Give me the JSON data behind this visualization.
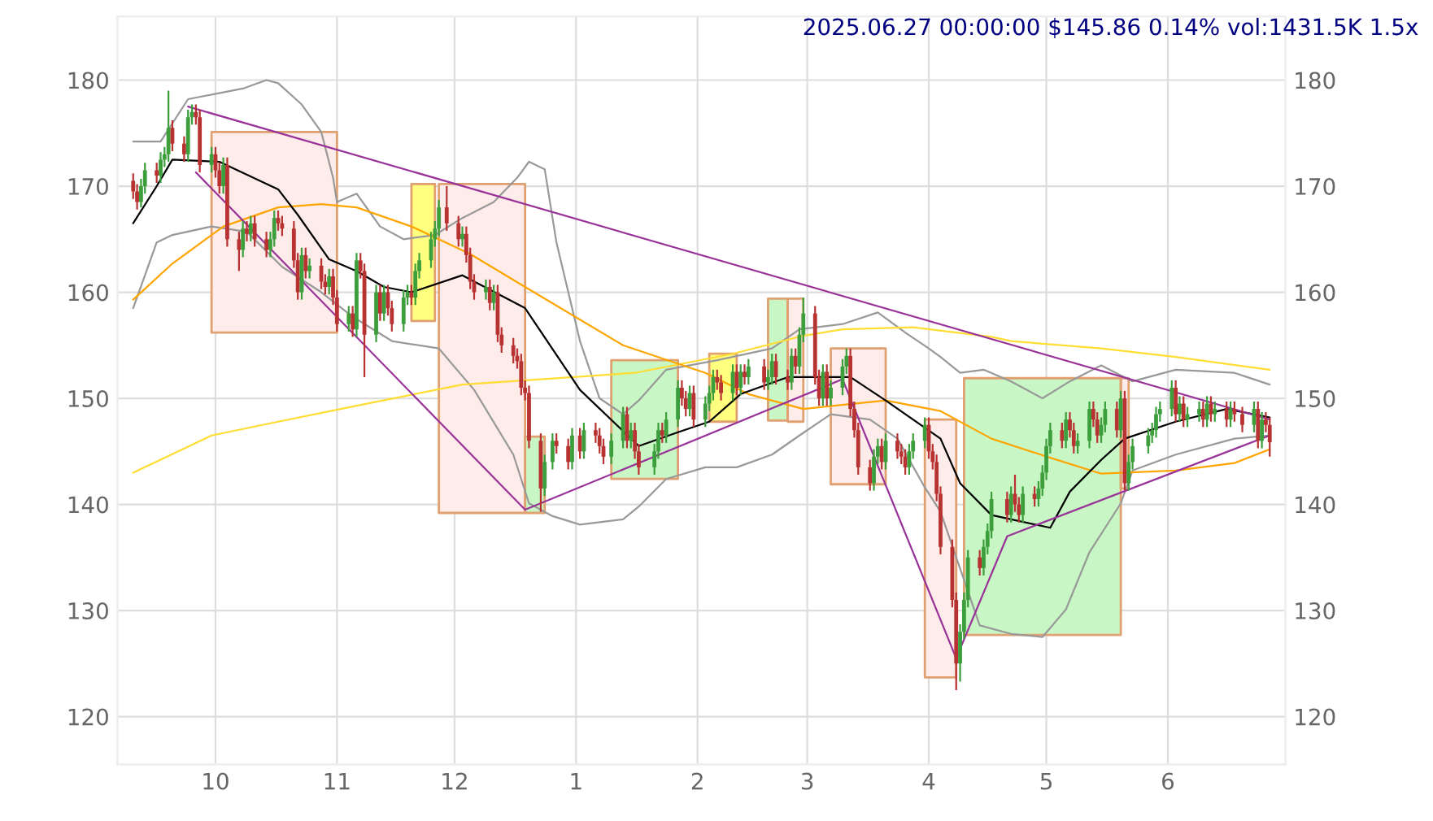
{
  "chart_data": {
    "type": "candlestick",
    "title": "2025.06.27 00:00:00 $145.86 0.14% vol:1431.5K 1.5x",
    "x": [
      "2024-09-10",
      "2024-09-11",
      "2024-09-12",
      "2024-09-13",
      "2024-09-16",
      "2024-09-17",
      "2024-09-18",
      "2024-09-19",
      "2024-09-20",
      "2024-09-23",
      "2024-09-24",
      "2024-09-25",
      "2024-09-26",
      "2024-09-27",
      "2024-09-30",
      "2024-10-01",
      "2024-10-02",
      "2024-10-03",
      "2024-10-04",
      "2024-10-07",
      "2024-10-08",
      "2024-10-09",
      "2024-10-10",
      "2024-10-11",
      "2024-10-14",
      "2024-10-15",
      "2024-10-16",
      "2024-10-17",
      "2024-10-18",
      "2024-10-21",
      "2024-10-22",
      "2024-10-23",
      "2024-10-24",
      "2024-10-25",
      "2024-10-28",
      "2024-10-29",
      "2024-10-30",
      "2024-10-31",
      "2024-11-01",
      "2024-11-04",
      "2024-11-05",
      "2024-11-06",
      "2024-11-07",
      "2024-11-08",
      "2024-11-11",
      "2024-11-12",
      "2024-11-13",
      "2024-11-14",
      "2024-11-15",
      "2024-11-18",
      "2024-11-19",
      "2024-11-20",
      "2024-11-21",
      "2024-11-22",
      "2024-11-25",
      "2024-11-26",
      "2024-11-27",
      "2024-11-29",
      "2024-12-02",
      "2024-12-03",
      "2024-12-04",
      "2024-12-05",
      "2024-12-06",
      "2024-12-09",
      "2024-12-10",
      "2024-12-11",
      "2024-12-12",
      "2024-12-13",
      "2024-12-16",
      "2024-12-17",
      "2024-12-18",
      "2024-12-19",
      "2024-12-20",
      "2024-12-23",
      "2024-12-24",
      "2024-12-26",
      "2024-12-27",
      "2024-12-30",
      "2024-12-31",
      "2025-01-02",
      "2025-01-03",
      "2025-01-06",
      "2025-01-07",
      "2025-01-08",
      "2025-01-10",
      "2025-01-13",
      "2025-01-14",
      "2025-01-15",
      "2025-01-16",
      "2025-01-17",
      "2025-01-21",
      "2025-01-22",
      "2025-01-23",
      "2025-01-24",
      "2025-01-27",
      "2025-01-28",
      "2025-01-29",
      "2025-01-30",
      "2025-01-31",
      "2025-02-03",
      "2025-02-04",
      "2025-02-05",
      "2025-02-06",
      "2025-02-07",
      "2025-02-10",
      "2025-02-11",
      "2025-02-12",
      "2025-02-13",
      "2025-02-14",
      "2025-02-18",
      "2025-02-19",
      "2025-02-20",
      "2025-02-21",
      "2025-02-24",
      "2025-02-25",
      "2025-02-26",
      "2025-02-27",
      "2025-02-28",
      "2025-03-03",
      "2025-03-04",
      "2025-03-05",
      "2025-03-06",
      "2025-03-07",
      "2025-03-10",
      "2025-03-11",
      "2025-03-12",
      "2025-03-13",
      "2025-03-14",
      "2025-03-17",
      "2025-03-18",
      "2025-03-19",
      "2025-03-20",
      "2025-03-21",
      "2025-03-24",
      "2025-03-25",
      "2025-03-26",
      "2025-03-27",
      "2025-03-28",
      "2025-03-31",
      "2025-04-01",
      "2025-04-02",
      "2025-04-03",
      "2025-04-04",
      "2025-04-07",
      "2025-04-08",
      "2025-04-09",
      "2025-04-10",
      "2025-04-11",
      "2025-04-14",
      "2025-04-15",
      "2025-04-16",
      "2025-04-17",
      "2025-04-21",
      "2025-04-22",
      "2025-04-23",
      "2025-04-24",
      "2025-04-25",
      "2025-04-28",
      "2025-04-29",
      "2025-04-30",
      "2025-05-01",
      "2025-05-02",
      "2025-05-05",
      "2025-05-06",
      "2025-05-07",
      "2025-05-08",
      "2025-05-09",
      "2025-05-12",
      "2025-05-13",
      "2025-05-14",
      "2025-05-15",
      "2025-05-16",
      "2025-05-19",
      "2025-05-20",
      "2025-05-21",
      "2025-05-22",
      "2025-05-23",
      "2025-05-27",
      "2025-05-28",
      "2025-05-29",
      "2025-05-30",
      "2025-06-02",
      "2025-06-03",
      "2025-06-04",
      "2025-06-05",
      "2025-06-06",
      "2025-06-09",
      "2025-06-10",
      "2025-06-11",
      "2025-06-12",
      "2025-06-13",
      "2025-06-16",
      "2025-06-17",
      "2025-06-18",
      "2025-06-20",
      "2025-06-23",
      "2025-06-24",
      "2025-06-25",
      "2025-06-26",
      "2025-06-27"
    ],
    "colors": [
      "#b83232",
      "#b83232",
      "#3c9f3c",
      "#3c9f3c",
      "#b83232",
      "#3c9f3c",
      "#3c9f3c",
      "#3c9f3c",
      "#b83232",
      "#b83232",
      "#3c9f3c",
      "#3c9f3c",
      "#b83232",
      "#b83232",
      "#3c9f3c",
      "#b83232",
      "#b83232",
      "#3c9f3c",
      "#b83232",
      "#b83232",
      "#3c9f3c",
      "#b83232",
      "#3c9f3c",
      "#b83232",
      "#b83232",
      "#3c9f3c",
      "#3c9f3c",
      "#b83232",
      "#b83232",
      "#b83232",
      "#b83232",
      "#3c9f3c",
      "#b83232",
      "#3c9f3c",
      "#b83232",
      "#b83232",
      "#3c9f3c",
      "#b83232",
      "#b83232",
      "#3c9f3c",
      "#b83232",
      "#3c9f3c",
      "#b83232",
      "#b83232",
      "#3c9f3c",
      "#b83232",
      "#3c9f3c",
      "#b83232",
      "#b83232",
      "#3c9f3c",
      "#3c9f3c",
      "#b83232",
      "#3c9f3c",
      "#3c9f3c",
      "#3c9f3c",
      "#3c9f3c",
      "#3c9f3c",
      "#b83232",
      "#b83232",
      "#3c9f3c",
      "#b83232",
      "#b83232",
      "#b83232",
      "#3c9f3c",
      "#b83232",
      "#3c9f3c",
      "#b83232",
      "#b83232",
      "#b83232",
      "#b83232",
      "#b83232",
      "#b83232",
      "#b83232",
      "#b83232",
      "#3c9f3c",
      "#3c9f3c",
      "#b83232",
      "#b83232",
      "#3c9f3c",
      "#b83232",
      "#3c9f3c",
      "#b83232",
      "#b83232",
      "#b83232",
      "#3c9f3c",
      "#3c9f3c",
      "#b83232",
      "#3c9f3c",
      "#b83232",
      "#b83232",
      "#3c9f3c",
      "#3c9f3c",
      "#b83232",
      "#3c9f3c",
      "#3c9f3c",
      "#b83232",
      "#b83232",
      "#3c9f3c",
      "#b83232",
      "#3c9f3c",
      "#3c9f3c",
      "#3c9f3c",
      "#b83232",
      "#b83232",
      "#3c9f3c",
      "#b83232",
      "#3c9f3c",
      "#b83232",
      "#3c9f3c",
      "#b83232",
      "#3c9f3c",
      "#3c9f3c",
      "#b83232",
      "#b83232",
      "#3c9f3c",
      "#b83232",
      "#3c9f3c",
      "#3c9f3c",
      "#b83232",
      "#b83232",
      "#3c9f3c",
      "#b83232",
      "#3c9f3c",
      "#3c9f3c",
      "#3c9f3c",
      "#b83232",
      "#b83232",
      "#b83232",
      "#b83232",
      "#3c9f3c",
      "#3c9f3c",
      "#b83232",
      "#3c9f3c",
      "#b83232",
      "#b83232",
      "#b83232",
      "#3c9f3c",
      "#3c9f3c",
      "#3c9f3c",
      "#b83232",
      "#b83232",
      "#b83232",
      "#b83232",
      "#b83232",
      "#b83232",
      "#3c9f3c",
      "#3c9f3c",
      "#3c9f3c",
      "#b83232",
      "#3c9f3c",
      "#3c9f3c",
      "#3c9f3c",
      "#b83232",
      "#3c9f3c",
      "#b83232",
      "#b83232",
      "#3c9f3c",
      "#b83232",
      "#3c9f3c",
      "#3c9f3c",
      "#3c9f3c",
      "#3c9f3c",
      "#b83232",
      "#3c9f3c",
      "#b83232",
      "#b83232",
      "#3c9f3c",
      "#3c9f3c",
      "#b83232",
      "#b83232",
      "#3c9f3c",
      "#3c9f3c",
      "#b83232",
      "#3c9f3c",
      "#b83232",
      "#3c9f3c",
      "#3c9f3c",
      "#3c9f3c",
      "#3c9f3c",
      "#3c9f3c",
      "#3c9f3c",
      "#3c9f3c",
      "#b83232",
      "#3c9f3c",
      "#b83232",
      "#3c9f3c",
      "#3c9f3c",
      "#b83232",
      "#3c9f3c",
      "#b83232",
      "#3c9f3c",
      "#b83232",
      "#3c9f3c",
      "#b83232",
      "#b83232",
      "#3c9f3c",
      "#b83232",
      "#3c9f3c",
      "#b83232",
      "#b83232"
    ],
    "ohlc": [
      [
        170.5,
        171.2,
        168.8,
        169.5
      ],
      [
        169.5,
        170.2,
        167.8,
        168.5
      ],
      [
        168.5,
        170.7,
        168,
        170
      ],
      [
        170,
        172.2,
        169.3,
        171.5
      ],
      [
        171.5,
        172.2,
        170.3,
        171
      ],
      [
        171,
        173.2,
        170.3,
        172.5
      ],
      [
        172.5,
        173.7,
        171.8,
        173
      ],
      [
        173,
        179,
        172.3,
        175.5
      ],
      [
        175.5,
        176.2,
        173.3,
        174
      ],
      [
        174,
        174.7,
        172.3,
        173
      ],
      [
        173,
        177.2,
        172.3,
        176.5
      ],
      [
        176.5,
        177.7,
        175.8,
        177
      ],
      [
        177,
        177.7,
        175.8,
        176.5
      ],
      [
        176.5,
        177.2,
        171.3,
        172
      ],
      [
        172,
        173.7,
        171.3,
        173
      ],
      [
        173,
        173.7,
        170.8,
        171.5
      ],
      [
        171.5,
        172.2,
        169.3,
        170
      ],
      [
        170,
        172.7,
        169.3,
        172
      ],
      [
        172,
        172.7,
        164.3,
        165
      ],
      [
        165,
        165.7,
        162,
        164
      ],
      [
        164,
        166.7,
        163.3,
        166
      ],
      [
        166,
        166.7,
        164.8,
        165.5
      ],
      [
        165.5,
        167.2,
        164.8,
        166.5
      ],
      [
        166.5,
        167.2,
        164.3,
        165
      ],
      [
        165,
        165.7,
        163.3,
        164
      ],
      [
        164,
        165.7,
        163.3,
        165
      ],
      [
        165,
        167.7,
        164.3,
        167
      ],
      [
        167,
        167.7,
        165.8,
        166.5
      ],
      [
        166.5,
        167.2,
        165.3,
        166
      ],
      [
        166,
        166.7,
        162.3,
        163
      ],
      [
        163,
        163.7,
        159.3,
        160
      ],
      [
        160,
        164.2,
        159.3,
        163.5
      ],
      [
        163.5,
        164.2,
        161.3,
        162
      ],
      [
        162,
        163.2,
        161.3,
        162.5
      ],
      [
        162.5,
        163.2,
        160.3,
        161
      ],
      [
        161,
        161.7,
        159.8,
        160.5
      ],
      [
        160.5,
        162.2,
        159.8,
        161.5
      ],
      [
        161.5,
        162.2,
        158.8,
        159.5
      ],
      [
        159.5,
        160.2,
        156.3,
        157
      ],
      [
        157,
        158.7,
        156.3,
        158
      ],
      [
        158,
        158.7,
        155.8,
        156.5
      ],
      [
        156.5,
        163.7,
        155.8,
        163
      ],
      [
        163,
        163.7,
        161.3,
        162
      ],
      [
        162,
        162.7,
        152,
        156
      ],
      [
        156,
        160.7,
        155.3,
        160
      ],
      [
        160,
        160.7,
        157.3,
        158
      ],
      [
        158,
        160.7,
        157.3,
        160
      ],
      [
        160,
        160.7,
        157.8,
        158.5
      ],
      [
        158.5,
        159.2,
        156.3,
        157
      ],
      [
        157,
        160.2,
        156.3,
        159.5
      ],
      [
        159.5,
        160.7,
        158.8,
        160
      ],
      [
        160,
        160.7,
        158.8,
        159.5
      ],
      [
        159.5,
        162.7,
        158.8,
        162
      ],
      [
        162,
        163.7,
        161.3,
        163
      ],
      [
        163,
        165.7,
        162.3,
        165
      ],
      [
        165,
        166.7,
        164.3,
        166
      ],
      [
        166,
        168.7,
        165.3,
        168
      ],
      [
        168,
        170,
        165.8,
        166.5
      ],
      [
        166.5,
        167.2,
        164.3,
        165
      ],
      [
        165,
        166.2,
        164.3,
        165.5
      ],
      [
        165.5,
        166.2,
        162.8,
        163.5
      ],
      [
        163.5,
        164.2,
        160.3,
        161
      ],
      [
        161,
        161.7,
        159.3,
        160
      ],
      [
        160,
        161.2,
        159.3,
        160.5
      ],
      [
        160.5,
        161.2,
        158.3,
        159
      ],
      [
        159,
        160.7,
        158.3,
        160
      ],
      [
        160,
        160.7,
        155.3,
        156
      ],
      [
        156,
        156.7,
        154.3,
        155
      ],
      [
        155,
        155.7,
        153.3,
        154
      ],
      [
        154,
        154.7,
        152.8,
        153.5
      ],
      [
        153.5,
        154.2,
        150.3,
        151
      ],
      [
        151,
        151.7,
        149.8,
        150.5
      ],
      [
        150.5,
        151.2,
        145.3,
        146
      ],
      [
        146,
        146.7,
        139.3,
        141.5
      ],
      [
        141.5,
        144.7,
        140.8,
        144
      ],
      [
        144,
        146.7,
        143.3,
        146
      ],
      [
        146,
        146.7,
        144.8,
        145.5
      ],
      [
        145.5,
        146.2,
        143.3,
        144
      ],
      [
        144,
        147.2,
        143.3,
        146.5
      ],
      [
        146.5,
        147.2,
        144.3,
        145
      ],
      [
        145,
        147.7,
        144.3,
        147
      ],
      [
        147,
        147.7,
        145.8,
        146.5
      ],
      [
        146.5,
        147.2,
        144.8,
        145.5
      ],
      [
        145.5,
        146.2,
        143.8,
        144.5
      ],
      [
        144.5,
        146.7,
        143.8,
        146
      ],
      [
        146,
        149.2,
        145.3,
        148.5
      ],
      [
        148.5,
        149.2,
        145.3,
        146
      ],
      [
        146,
        147.7,
        145.3,
        147
      ],
      [
        147,
        147.7,
        144.3,
        145
      ],
      [
        145,
        145.7,
        142.8,
        143.5
      ],
      [
        143.5,
        145.7,
        142.8,
        145
      ],
      [
        145,
        147.7,
        144.3,
        147
      ],
      [
        147,
        147.7,
        145.8,
        146.5
      ],
      [
        146.5,
        148.7,
        145.8,
        148
      ],
      [
        148,
        151.7,
        147.3,
        151
      ],
      [
        151,
        151.7,
        149.3,
        150
      ],
      [
        150,
        150.7,
        148.3,
        149
      ],
      [
        149,
        151.2,
        148.3,
        150.5
      ],
      [
        150.5,
        151.2,
        147.3,
        148
      ],
      [
        148,
        150.2,
        147.3,
        149.5
      ],
      [
        149.5,
        151.2,
        148.8,
        150.5
      ],
      [
        150.5,
        152.7,
        149.8,
        152
      ],
      [
        152,
        152.7,
        150.8,
        151.5
      ],
      [
        151.5,
        152.2,
        149.8,
        150.5
      ],
      [
        150.5,
        153.2,
        149.8,
        152.5
      ],
      [
        152.5,
        153.2,
        150.3,
        151
      ],
      [
        151,
        153.2,
        150.3,
        152.5
      ],
      [
        152.5,
        153.2,
        151.3,
        152
      ],
      [
        152,
        153.7,
        151.3,
        153
      ],
      [
        153,
        153.7,
        150.8,
        151.5
      ],
      [
        151.5,
        152.7,
        150.8,
        152
      ],
      [
        152,
        154.2,
        151.3,
        153.5
      ],
      [
        153.5,
        154.2,
        151.3,
        152
      ],
      [
        152,
        152.7,
        150.8,
        151.5
      ],
      [
        151.5,
        154.7,
        150.8,
        154
      ],
      [
        154,
        154.7,
        152.3,
        153
      ],
      [
        153,
        156.7,
        152.3,
        156
      ],
      [
        156,
        159.5,
        155.3,
        158
      ],
      [
        158,
        158.7,
        151.3,
        152
      ],
      [
        152,
        152.7,
        149.3,
        150
      ],
      [
        150,
        153.2,
        149.3,
        152.5
      ],
      [
        152.5,
        153.2,
        149.3,
        150
      ],
      [
        150,
        151.7,
        149.3,
        151
      ],
      [
        151,
        153.7,
        150.3,
        153
      ],
      [
        153,
        154.7,
        152.3,
        154
      ],
      [
        154,
        154.7,
        148.3,
        149
      ],
      [
        149,
        149.7,
        146.3,
        147
      ],
      [
        147,
        147.7,
        142.8,
        143.5
      ],
      [
        143.5,
        144.2,
        141.3,
        142
      ],
      [
        142,
        145.2,
        141.3,
        144.5
      ],
      [
        144.5,
        146.2,
        143.8,
        145.5
      ],
      [
        145.5,
        146.2,
        143.3,
        144
      ],
      [
        144,
        146.7,
        143.3,
        146
      ],
      [
        146,
        146.7,
        144.3,
        145
      ],
      [
        145,
        145.7,
        143.8,
        144.5
      ],
      [
        144.5,
        145.2,
        142.8,
        143.5
      ],
      [
        143.5,
        145.7,
        142.8,
        145
      ],
      [
        145,
        146.7,
        144.3,
        146
      ],
      [
        146,
        148.2,
        145.3,
        147.5
      ],
      [
        147.5,
        148.2,
        144.3,
        145
      ],
      [
        145,
        145.7,
        143.3,
        144
      ],
      [
        144,
        144.7,
        140.3,
        141
      ],
      [
        141,
        141.7,
        135.3,
        136
      ],
      [
        136,
        136.7,
        130.3,
        131
      ],
      [
        131,
        131.7,
        122.5,
        125
      ],
      [
        125,
        128.7,
        123.3,
        128
      ],
      [
        128,
        131.7,
        127.3,
        131
      ],
      [
        131,
        135.7,
        130.3,
        135
      ],
      [
        135,
        135.7,
        133.3,
        134
      ],
      [
        134,
        136.7,
        133.3,
        136
      ],
      [
        136,
        138.2,
        135.3,
        137.5
      ],
      [
        137.5,
        141.2,
        136.8,
        140.5
      ],
      [
        140.5,
        141.2,
        138.3,
        139
      ],
      [
        139,
        141.7,
        138.3,
        141
      ],
      [
        141,
        142.8,
        139.3,
        140
      ],
      [
        140,
        140.7,
        138.3,
        139
      ],
      [
        139,
        141.7,
        138.3,
        141
      ],
      [
        141,
        141.7,
        139.8,
        140.5
      ],
      [
        140.5,
        142.2,
        139.8,
        141.5
      ],
      [
        141.5,
        143.7,
        140.8,
        143
      ],
      [
        143,
        146.2,
        142.3,
        145.5
      ],
      [
        145.5,
        147.7,
        144.8,
        147
      ],
      [
        147,
        147.7,
        145.3,
        146
      ],
      [
        146,
        148.7,
        145.3,
        148
      ],
      [
        148,
        148.7,
        146.3,
        147
      ],
      [
        147,
        147.7,
        144.8,
        145.5
      ],
      [
        145.5,
        146.7,
        144.8,
        146
      ],
      [
        146,
        149.7,
        145.3,
        149
      ],
      [
        149,
        149.7,
        147.3,
        148
      ],
      [
        148,
        148.7,
        145.8,
        146.5
      ],
      [
        146.5,
        148.2,
        145.8,
        147.5
      ],
      [
        147.5,
        149.7,
        146.8,
        149
      ],
      [
        149,
        149.7,
        146.3,
        147
      ],
      [
        147,
        150.7,
        146.3,
        150
      ],
      [
        150,
        150.7,
        141.3,
        142
      ],
      [
        142,
        144.7,
        141.3,
        144
      ],
      [
        144,
        146.2,
        143.3,
        145.5
      ],
      [
        145.5,
        147.2,
        144.8,
        146.5
      ],
      [
        146.5,
        147.7,
        145.8,
        147
      ],
      [
        147,
        149.2,
        146.3,
        148.5
      ],
      [
        148.5,
        149.7,
        147.8,
        149
      ],
      [
        149,
        151.7,
        148.3,
        151
      ],
      [
        151,
        151.7,
        147.8,
        148.5
      ],
      [
        148.5,
        150.2,
        147.8,
        149.5
      ],
      [
        149.5,
        150.2,
        147.3,
        148
      ],
      [
        148,
        149.2,
        147.3,
        148.5
      ],
      [
        148.5,
        149.7,
        147.8,
        149
      ],
      [
        149,
        149.7,
        147.3,
        148
      ],
      [
        148,
        150.2,
        147.3,
        149.5
      ],
      [
        149.5,
        150.2,
        147.8,
        148.5
      ],
      [
        148.5,
        149.7,
        147.8,
        149
      ],
      [
        149,
        149.7,
        147.3,
        148
      ],
      [
        148,
        149.7,
        147.3,
        149
      ],
      [
        149,
        149.7,
        147.8,
        148.5
      ],
      [
        148.5,
        149.2,
        146.8,
        147.5
      ],
      [
        147.5,
        149.7,
        146.8,
        149
      ],
      [
        149,
        149.7,
        145.3,
        146
      ],
      [
        146,
        148.7,
        145.3,
        148
      ],
      [
        148,
        148.7,
        146.8,
        147.5
      ],
      [
        147.5,
        148.2,
        144.5,
        145.86
      ]
    ],
    "series": [
      {
        "type": "line",
        "x": [
          "2024-09-30",
          "2024-11-01"
        ],
        "values": [
          null,
          null
        ],
        "upper": [
          175.1,
          175.1
        ],
        "lower": [
          156.2,
          156.2
        ],
        "color": "#fdecea"
      },
      {
        "type": "line",
        "x": [
          "2024-11-20",
          "2024-11-26"
        ],
        "values": [
          null,
          null
        ],
        "upper": [
          170.2,
          170.2
        ],
        "lower": [
          157.3,
          157.3
        ],
        "color": "#ffff80"
      },
      {
        "type": "line",
        "x": [
          "2024-11-27",
          "2024-12-19"
        ],
        "values": [
          null,
          null
        ],
        "upper": [
          170.2,
          170.2
        ],
        "lower": [
          139.2,
          139.2
        ],
        "color": "#fdecea"
      },
      {
        "type": "line",
        "x": [
          "2024-12-19",
          "2024-12-24"
        ],
        "values": [
          null,
          null
        ],
        "upper": [
          146.4,
          146.4
        ],
        "lower": [
          139.2,
          139.2
        ],
        "color": "#c8f7c5"
      },
      {
        "type": "line",
        "x": [
          "2025-01-10",
          "2025-01-27"
        ],
        "values": [
          null,
          null
        ],
        "upper": [
          153.6,
          153.6
        ],
        "lower": [
          142.4,
          142.4
        ],
        "color": "#c8f7c5"
      },
      {
        "type": "line",
        "x": [
          "2025-02-04",
          "2025-02-11"
        ],
        "values": [
          null,
          null
        ],
        "upper": [
          154.2,
          154.2
        ],
        "lower": [
          147.8,
          147.8
        ],
        "color": "#ffff80"
      },
      {
        "type": "line",
        "x": [
          "2025-02-19",
          "2025-02-24"
        ],
        "values": [
          null,
          null
        ],
        "upper": [
          159.4,
          159.4
        ],
        "lower": [
          147.9,
          147.9
        ],
        "color": "#c8f7c5"
      },
      {
        "type": "line",
        "x": [
          "2025-02-24",
          "2025-02-28"
        ],
        "values": [
          null,
          null
        ],
        "upper": [
          159.4,
          159.4
        ],
        "lower": [
          147.8,
          147.8
        ],
        "color": "#fdecea"
      },
      {
        "type": "line",
        "x": [
          "2025-03-07",
          "2025-03-21"
        ],
        "values": [
          null,
          null
        ],
        "upper": [
          154.7,
          154.7
        ],
        "lower": [
          141.9,
          141.9
        ],
        "color": "#fdecea"
      },
      {
        "type": "line",
        "x": [
          "2025-03-31",
          "2025-04-08"
        ],
        "values": [
          null,
          null
        ],
        "upper": [
          148.0,
          148.0
        ],
        "lower": [
          123.7,
          123.7
        ],
        "color": "#fdecea"
      },
      {
        "type": "line",
        "x": [
          "2025-04-10",
          "2025-05-20"
        ],
        "values": [
          null,
          null
        ],
        "upper": [
          151.9,
          151.9
        ],
        "lower": [
          127.7,
          127.7
        ],
        "color": "#c8f7c5"
      },
      {
        "type": "line",
        "x": [
          "2025-05-20",
          "2025-05-22"
        ],
        "values": [
          null,
          null
        ],
        "upper": [
          151.9,
          151.9
        ],
        "lower": [
          141.5,
          141.5
        ],
        "color": "#fdecea"
      },
      {
        "type": "line",
        "color": "#999999",
        "x": [
          "2024-09-10",
          "2024-09-17",
          "2024-09-24",
          "2024-10-08",
          "2024-10-14",
          "2024-10-17",
          "2024-10-23",
          "2024-10-28",
          "2024-10-31",
          "2024-11-01",
          "2024-11-06",
          "2024-11-12",
          "2024-11-18",
          "2024-11-26",
          "2024-12-03",
          "2024-12-11",
          "2024-12-17",
          "2024-12-20",
          "2024-12-24",
          "2024-12-27",
          "2025-01-02",
          "2025-01-07",
          "2025-01-13",
          "2025-01-17",
          "2025-01-24",
          "2025-02-06",
          "2025-02-20",
          "2025-02-27",
          "2025-03-10",
          "2025-03-19",
          "2025-03-26",
          "2025-04-01",
          "2025-04-04",
          "2025-04-09",
          "2025-04-15",
          "2025-04-22",
          "2025-04-30",
          "2025-05-07",
          "2025-05-15",
          "2025-05-23",
          "2025-06-03",
          "2025-06-18",
          "2025-06-27"
        ],
        "values": [
          174.2,
          174.2,
          178.2,
          179.2,
          180,
          179.7,
          177.7,
          175.1,
          170.8,
          168.5,
          169.3,
          166.2,
          165,
          165.4,
          167,
          168.5,
          170.8,
          172.3,
          171.6,
          164.7,
          155.4,
          150,
          148.5,
          149.8,
          152.7,
          153.6,
          154.7,
          156.5,
          157,
          158.1,
          156.2,
          154.7,
          153.9,
          152.4,
          152.7,
          151.6,
          150,
          151.6,
          153.1,
          151.6,
          152.7,
          152.4,
          151.3
        ]
      },
      {
        "type": "line",
        "color": "#999999",
        "x": [
          "2024-09-10",
          "2024-09-16",
          "2024-09-20",
          "2024-09-30",
          "2024-10-09",
          "2024-10-18",
          "2024-10-28",
          "2024-11-05",
          "2024-11-15",
          "2024-11-27",
          "2024-12-06",
          "2024-12-16",
          "2024-12-20",
          "2024-12-26",
          "2025-01-02",
          "2025-01-13",
          "2025-01-17",
          "2025-01-24",
          "2025-02-03",
          "2025-02-11",
          "2025-02-20",
          "2025-02-27",
          "2025-03-07",
          "2025-03-17",
          "2025-03-24",
          "2025-03-31",
          "2025-04-04",
          "2025-04-14",
          "2025-04-22",
          "2025-04-30",
          "2025-05-06",
          "2025-05-12",
          "2025-05-20",
          "2025-05-23",
          "2025-06-03",
          "2025-06-18",
          "2025-06-27"
        ],
        "values": [
          158.5,
          164.7,
          165.4,
          166.2,
          165.7,
          162.4,
          160,
          157.7,
          155.4,
          154.7,
          150.8,
          144.7,
          140.1,
          138.9,
          138.1,
          138.6,
          139.8,
          142.4,
          143.5,
          143.5,
          144.7,
          146.5,
          148.5,
          148,
          146.2,
          141.6,
          139.3,
          128.6,
          127.8,
          127.5,
          130.1,
          135.5,
          140.1,
          143.2,
          144.7,
          146.2,
          146.5
        ]
      },
      {
        "type": "line",
        "color": "#ffdd33",
        "x": [
          "2024-09-10",
          "2024-09-30",
          "2024-10-17",
          "2024-11-06",
          "2024-12-03",
          "2025-01-16",
          "2025-02-10",
          "2025-02-28",
          "2025-03-10",
          "2025-03-28",
          "2025-04-17",
          "2025-04-22",
          "2025-05-15",
          "2025-06-03",
          "2025-06-27"
        ],
        "values": [
          143,
          146.5,
          147.8,
          149.3,
          151.3,
          152.4,
          154.2,
          155.9,
          156.5,
          156.7,
          155.8,
          155.4,
          154.7,
          153.9,
          152.7
        ]
      },
      {
        "type": "line",
        "color": "#ffa500",
        "x": [
          "2024-09-10",
          "2024-09-20",
          "2024-10-03",
          "2024-10-17",
          "2024-10-28",
          "2024-11-06",
          "2024-11-20",
          "2024-12-05",
          "2024-12-19",
          "2025-01-13",
          "2025-02-03",
          "2025-02-14",
          "2025-02-28",
          "2025-03-21",
          "2025-04-04",
          "2025-04-17",
          "2025-05-02",
          "2025-05-15",
          "2025-06-03",
          "2025-06-18",
          "2025-06-27"
        ],
        "values": [
          159.3,
          162.7,
          166.2,
          168,
          168.3,
          168,
          166.2,
          163.6,
          160.5,
          155,
          152.4,
          150.4,
          149,
          149.8,
          148.8,
          146.2,
          144.4,
          142.9,
          143.2,
          143.9,
          145.2
        ]
      },
      {
        "type": "line",
        "color": "#000000",
        "x": [
          "2024-09-10",
          "2024-09-16",
          "2024-09-20",
          "2024-10-02",
          "2024-10-17",
          "2024-10-22",
          "2024-10-30",
          "2024-11-06",
          "2024-11-13",
          "2024-11-20",
          "2024-12-03",
          "2024-12-19",
          "2025-01-02",
          "2025-01-17",
          "2025-01-27",
          "2025-02-04",
          "2025-02-12",
          "2025-02-24",
          "2025-03-12",
          "2025-03-21",
          "2025-04-04",
          "2025-04-09",
          "2025-04-17",
          "2025-05-02",
          "2025-05-07",
          "2025-05-15",
          "2025-05-21",
          "2025-06-03",
          "2025-06-16",
          "2025-06-27"
        ],
        "values": [
          166.5,
          170,
          172.5,
          172.3,
          169.7,
          167.3,
          163.1,
          162,
          160.5,
          160,
          161.6,
          158.5,
          150.8,
          145.5,
          146.8,
          147.8,
          150.4,
          152,
          152,
          149.8,
          146.2,
          142,
          139,
          137.8,
          141.2,
          144.2,
          146.2,
          147.8,
          149,
          148.2
        ]
      },
      {
        "type": "line",
        "color": "#993399",
        "x": [
          "2024-09-24",
          "2025-06-27"
        ],
        "values": [
          177.5,
          148
        ]
      },
      {
        "type": "line",
        "color": "#993399",
        "x": [
          "2024-09-26",
          "2024-12-19",
          "2025-03-10",
          "2025-04-08",
          "2025-04-21",
          "2025-06-27"
        ],
        "values": [
          171.3,
          139.5,
          151.8,
          125.5,
          137,
          146.5
        ]
      }
    ],
    "xlim": [
      "2024-09-06",
      "2025-07-01"
    ],
    "xticks": [
      {
        "value": "2024-10-01",
        "label": "10"
      },
      {
        "value": "2024-11-01",
        "label": "11"
      },
      {
        "value": "2024-12-01",
        "label": "12"
      },
      {
        "value": "2025-01-01",
        "label": "1"
      },
      {
        "value": "2025-02-01",
        "label": "2"
      },
      {
        "value": "2025-03-01",
        "label": "3"
      },
      {
        "value": "2025-04-01",
        "label": "4"
      },
      {
        "value": "2025-05-01",
        "label": "5"
      },
      {
        "value": "2025-06-01",
        "label": "6"
      }
    ],
    "ylim": [
      115.5,
      186
    ],
    "yticks": [
      120,
      130,
      140,
      150,
      160,
      170,
      180
    ],
    "y2lim": [
      115.5,
      186
    ],
    "y2ticks": [
      120,
      130,
      140,
      150,
      160,
      170,
      180
    ],
    "grid": true
  }
}
